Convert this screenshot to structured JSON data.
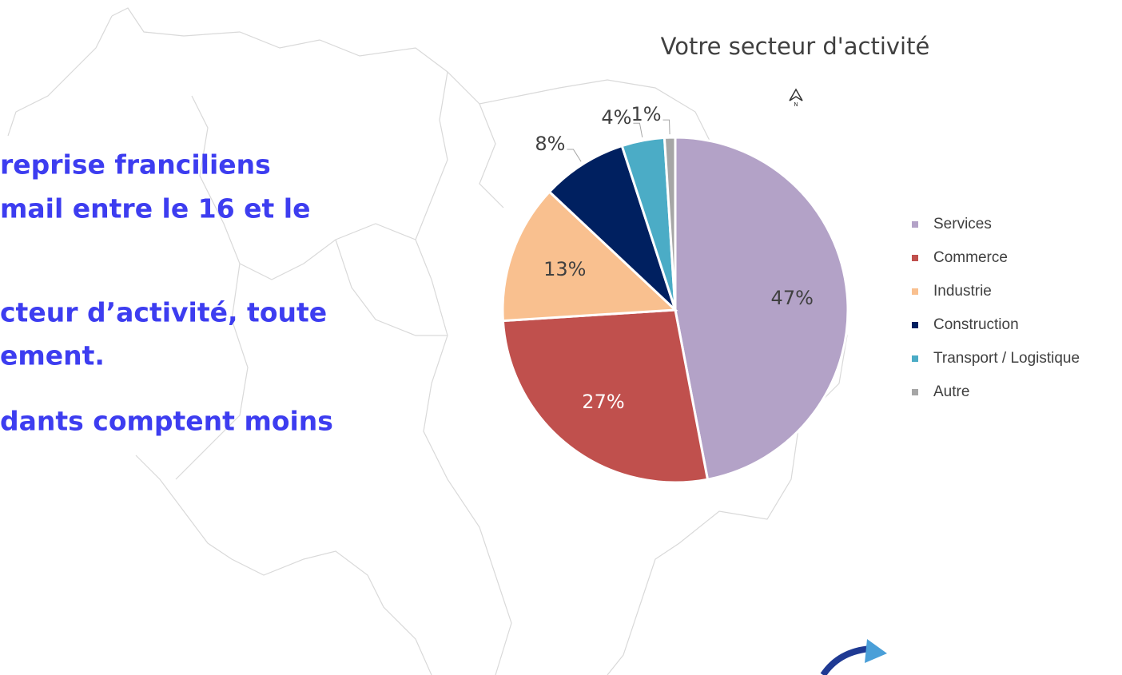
{
  "slide_text": [
    "reprise franciliens",
    "mail entre le 16 et le",
    "cteur d’activité, toute",
    "ement.",
    "dants comptent moins"
  ],
  "north_label": "N",
  "chart_data": {
    "type": "pie",
    "title": "Votre secteur d'activité",
    "categories": [
      "Services",
      "Commerce",
      "Industrie",
      "Construction",
      "Transport / Logistique",
      "Autre"
    ],
    "values": [
      47,
      27,
      13,
      8,
      4,
      1
    ],
    "value_labels": [
      "47%",
      "27%",
      "13%",
      "8%",
      "4%",
      "1%"
    ],
    "colors": [
      "#b3a2c7",
      "#c0504d",
      "#f9c08f",
      "#002060",
      "#4bacc6",
      "#a6a6a6"
    ],
    "legend": "right"
  }
}
